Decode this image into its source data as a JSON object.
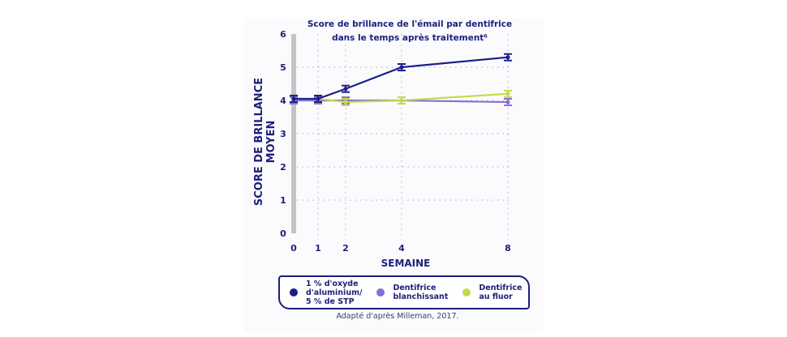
{
  "chart_data": {
    "type": "line",
    "title": "Score de brillance de l'émail par dentifrice dans le temps après traitement⁶",
    "title_lines": [
      "Score de brillance de l'émail par dentifrice",
      "dans le temps après traitement⁶"
    ],
    "xlabel": "SEMAINE",
    "ylabel": "SCORE DE BRILLANCE MOYEN",
    "x": [
      0,
      1,
      2,
      4,
      8
    ],
    "x_ticks": [
      "0",
      "1",
      "2",
      "4",
      "8"
    ],
    "y_ticks": [
      "0",
      "1",
      "2",
      "3",
      "4",
      "5",
      "6"
    ],
    "ylim": [
      0,
      6
    ],
    "grid": "dotted",
    "legend_position": "bottom",
    "series": [
      {
        "name": "1 % d'oxyde d'aluminium/ 5 % de STP",
        "color": "#1c1f8a",
        "values": [
          4.05,
          4.05,
          4.35,
          5.0,
          5.3
        ]
      },
      {
        "name": "Dentifrice blanchissant",
        "color": "#8a6fcf",
        "values": [
          4.0,
          4.0,
          4.0,
          4.0,
          3.95
        ]
      },
      {
        "name": "Dentifrice au fluor",
        "color": "#c8d84a",
        "values": [
          4.05,
          4.05,
          3.95,
          4.0,
          4.2
        ]
      }
    ],
    "source": "Adapté d'après Milleman, 2017."
  },
  "legend": {
    "items": [
      {
        "label": "1 % d'oxyde\nd'aluminium/\n5 % de STP",
        "color": "#1c1f8a"
      },
      {
        "label": "Dentifrice\nblanchissant",
        "color": "#8a6fcf"
      },
      {
        "label": "Dentifrice\nau fluor",
        "color": "#c8d84a"
      }
    ]
  }
}
